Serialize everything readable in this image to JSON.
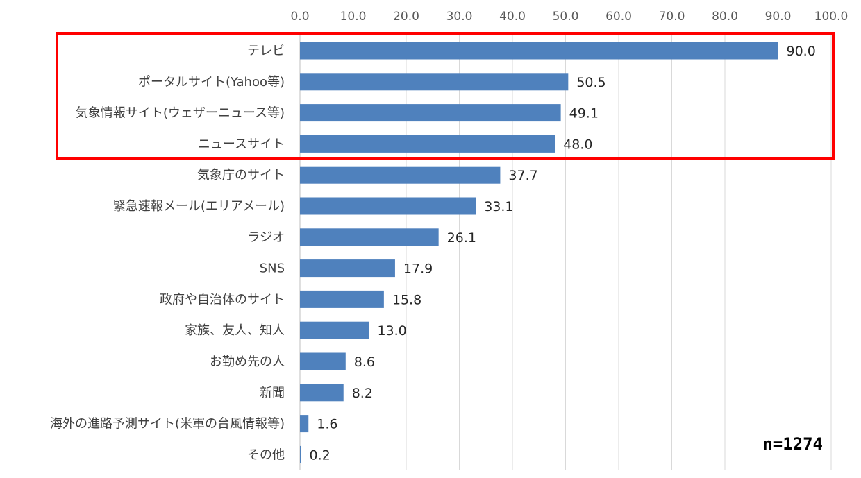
{
  "chart_data": {
    "type": "bar",
    "orientation": "horizontal",
    "categories": [
      "テレビ",
      "ポータルサイト(Yahoo等)",
      "気象情報サイト(ウェザーニュース等)",
      "ニュースサイト",
      "気象庁のサイト",
      "緊急速報メール(エリアメール)",
      "ラジオ",
      "SNS",
      "政府や自治体のサイト",
      "家族、友人、知人",
      "お勤め先の人",
      "新聞",
      "海外の進路予測サイト(米軍の台風情報等)",
      "その他"
    ],
    "values": [
      90.0,
      50.5,
      49.1,
      48.0,
      37.7,
      33.1,
      26.1,
      17.9,
      15.8,
      13.0,
      8.6,
      8.2,
      1.6,
      0.2
    ],
    "value_labels": [
      "90.0",
      "50.5",
      "49.1",
      "48.0",
      "37.7",
      "33.1",
      "26.1",
      "17.9",
      "15.8",
      "13.0",
      "8.6",
      "8.2",
      "1.6",
      "0.2"
    ],
    "xlim": [
      0,
      100
    ],
    "x_ticks": [
      "0.0",
      "10.0",
      "20.0",
      "30.0",
      "40.0",
      "50.0",
      "60.0",
      "70.0",
      "80.0",
      "90.0",
      "100.0"
    ],
    "x_axis_position": "top",
    "grid": true,
    "bar_color": "#4F81BD",
    "highlight": {
      "categories": [
        "テレビ",
        "ポータルサイト(Yahoo等)",
        "気象情報サイト(ウェザーニュース等)",
        "ニュースサイト"
      ],
      "color": "#FF0000"
    },
    "annotation": "n=1274",
    "title": "",
    "xlabel": "",
    "ylabel": ""
  }
}
